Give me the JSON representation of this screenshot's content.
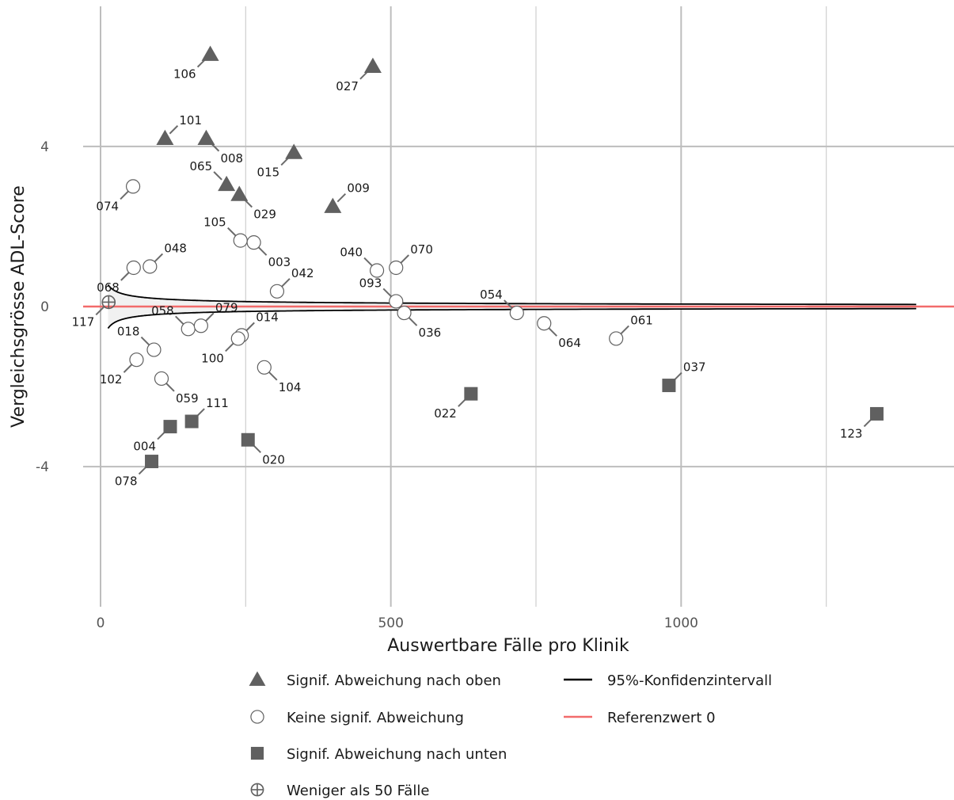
{
  "chart_data": {
    "type": "scatter",
    "title": "",
    "xlabel": "Auswertbare Fälle pro Klinik",
    "ylabel": "Vergleichsgrösse ADL-Score",
    "xlim": [
      -30,
      1470
    ],
    "ylim": [
      -7.5,
      7.5
    ],
    "x_ticks": [
      0,
      500,
      1000
    ],
    "x_tick_labels": [
      "0",
      "500",
      "1000"
    ],
    "x_minor_gridlines": [
      250,
      750,
      1250
    ],
    "y_ticks": [
      -4,
      0,
      4
    ],
    "y_tick_labels": [
      "-4",
      "0",
      "4"
    ],
    "grid": true,
    "reference_line": {
      "y": 0,
      "color": "#f26b6b",
      "label": "Referenzwert 0"
    },
    "confidence_interval": {
      "label": "95%-Konfidenzintervall",
      "color": "#000000",
      "fill": "#f1f1f1",
      "x_start": 13,
      "x_end": 1405
    },
    "legend_position": "bottom",
    "categories": [
      {
        "key": "up",
        "label": "Signif. Abweichung nach oben",
        "marker": "triangle",
        "color": "#606060"
      },
      {
        "key": "none",
        "label": "Keine signif. Abweichung",
        "marker": "circle-open",
        "color": "#606060"
      },
      {
        "key": "down",
        "label": "Signif. Abweichung nach unten",
        "marker": "square",
        "color": "#606060"
      },
      {
        "key": "few",
        "label": "Weniger als 50 Fälle",
        "marker": "circle-plus",
        "color": "#606060"
      }
    ],
    "points": [
      {
        "id": "106",
        "x": 189,
        "y": 6.3,
        "cat": "up",
        "lp": "bl"
      },
      {
        "id": "027",
        "x": 469,
        "y": 6.0,
        "cat": "up",
        "lp": "bl"
      },
      {
        "id": "101",
        "x": 111,
        "y": 4.2,
        "cat": "up",
        "lp": "tr"
      },
      {
        "id": "008",
        "x": 182,
        "y": 4.2,
        "cat": "up",
        "lp": "br"
      },
      {
        "id": "015",
        "x": 333,
        "y": 3.85,
        "cat": "up",
        "lp": "bl"
      },
      {
        "id": "065",
        "x": 217,
        "y": 3.05,
        "cat": "up",
        "lp": "tl"
      },
      {
        "id": "029",
        "x": 239,
        "y": 2.8,
        "cat": "up",
        "lp": "br"
      },
      {
        "id": "009",
        "x": 400,
        "y": 2.5,
        "cat": "up",
        "lp": "tr"
      },
      {
        "id": "074",
        "x": 56,
        "y": 3.0,
        "cat": "none",
        "lp": "bl"
      },
      {
        "id": "105",
        "x": 241,
        "y": 1.65,
        "cat": "none",
        "lp": "tl"
      },
      {
        "id": "003",
        "x": 264,
        "y": 1.6,
        "cat": "none",
        "lp": "br"
      },
      {
        "id": "048",
        "x": 85,
        "y": 1.0,
        "cat": "none",
        "lp": "tr"
      },
      {
        "id": "068",
        "x": 57,
        "y": 0.97,
        "cat": "none",
        "lp": "bl"
      },
      {
        "id": "040",
        "x": 476,
        "y": 0.9,
        "cat": "none",
        "lp": "tl"
      },
      {
        "id": "070",
        "x": 509,
        "y": 0.97,
        "cat": "none",
        "lp": "tr"
      },
      {
        "id": "042",
        "x": 304,
        "y": 0.38,
        "cat": "none",
        "lp": "tr"
      },
      {
        "id": "093",
        "x": 509,
        "y": 0.13,
        "cat": "none",
        "lp": "tl"
      },
      {
        "id": "036",
        "x": 523,
        "y": -0.16,
        "cat": "none",
        "lp": "br"
      },
      {
        "id": "054",
        "x": 717,
        "y": -0.16,
        "cat": "none",
        "lp": "tl"
      },
      {
        "id": "064",
        "x": 764,
        "y": -0.42,
        "cat": "none",
        "lp": "br"
      },
      {
        "id": "061",
        "x": 888,
        "y": -0.8,
        "cat": "none",
        "lp": "tr"
      },
      {
        "id": "058",
        "x": 151,
        "y": -0.56,
        "cat": "none",
        "lp": "tl"
      },
      {
        "id": "079",
        "x": 173,
        "y": -0.48,
        "cat": "none",
        "lp": "tr"
      },
      {
        "id": "014",
        "x": 243,
        "y": -0.72,
        "cat": "none",
        "lp": "tr"
      },
      {
        "id": "100",
        "x": 237,
        "y": -0.8,
        "cat": "none",
        "lp": "bl"
      },
      {
        "id": "018",
        "x": 92,
        "y": -1.08,
        "cat": "none",
        "lp": "tl"
      },
      {
        "id": "102",
        "x": 62,
        "y": -1.33,
        "cat": "none",
        "lp": "bl"
      },
      {
        "id": "059",
        "x": 105,
        "y": -1.8,
        "cat": "none",
        "lp": "br"
      },
      {
        "id": "104",
        "x": 282,
        "y": -1.52,
        "cat": "none",
        "lp": "br"
      },
      {
        "id": "022",
        "x": 638,
        "y": -2.18,
        "cat": "down",
        "lp": "bl"
      },
      {
        "id": "037",
        "x": 979,
        "y": -1.97,
        "cat": "down",
        "lp": "tr"
      },
      {
        "id": "123",
        "x": 1337,
        "y": -2.68,
        "cat": "down",
        "lp": "bl"
      },
      {
        "id": "111",
        "x": 157,
        "y": -2.87,
        "cat": "down",
        "lp": "tr"
      },
      {
        "id": "004",
        "x": 120,
        "y": -3.0,
        "cat": "down",
        "lp": "bl"
      },
      {
        "id": "020",
        "x": 254,
        "y": -3.33,
        "cat": "down",
        "lp": "br"
      },
      {
        "id": "078",
        "x": 88,
        "y": -3.87,
        "cat": "down",
        "lp": "bl"
      },
      {
        "id": "117",
        "x": 14,
        "y": 0.11,
        "cat": "few",
        "lp": "bl"
      }
    ]
  }
}
